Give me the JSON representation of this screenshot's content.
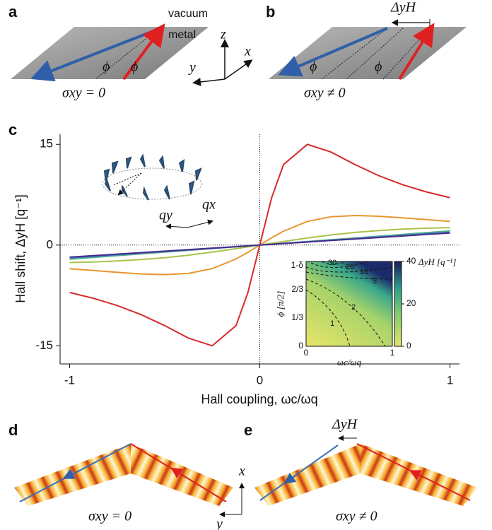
{
  "panel_a": {
    "label": "a",
    "vacuum": "vacuum",
    "metal": "metal",
    "axis_z": "z",
    "axis_x": "x",
    "axis_y": "y",
    "angle_1": "ϕ",
    "angle_2": "ϕ",
    "caption": "σxy = 0"
  },
  "panel_b": {
    "label": "b",
    "shift": "ΔyH",
    "angle_1": "ϕ",
    "angle_2": "ϕ",
    "caption": "σxy ≠ 0"
  },
  "panel_d": {
    "label": "d",
    "caption": "σxy = 0",
    "axis_x": "x",
    "axis_y": "y"
  },
  "panel_e": {
    "label": "e",
    "shift": "ΔyH",
    "caption": "σxy ≠ 0"
  },
  "chart_data": {
    "type": "line",
    "panel_label": "c",
    "x_label": "Hall coupling, ωc/ωq",
    "y_label": "Hall shift, ΔyH  [q⁻¹]",
    "x": [
      -1,
      -0.875,
      -0.75,
      -0.625,
      -0.5,
      -0.375,
      -0.25,
      -0.125,
      -0.0625,
      0,
      0.0625,
      0.125,
      0.25,
      0.375,
      0.5,
      0.625,
      0.75,
      0.875,
      1
    ],
    "series": [
      {
        "color": "#d62b2b",
        "values": [
          -7.06,
          -7.92,
          -9.0,
          -10.34,
          -12.0,
          -13.85,
          -15.0,
          -12.0,
          -7.06,
          0,
          7.06,
          12.0,
          15.0,
          13.85,
          12.0,
          10.34,
          9.0,
          7.92,
          7.06
        ]
      },
      {
        "color": "#e8962e",
        "values": [
          -3.52,
          -3.79,
          -4.06,
          -4.29,
          -4.4,
          -4.22,
          -3.52,
          -2.07,
          -1.08,
          0,
          1.08,
          2.07,
          3.52,
          4.22,
          4.4,
          4.29,
          4.06,
          3.79,
          3.52
        ]
      },
      {
        "color": "#a9c24a",
        "values": [
          -2.6,
          -2.52,
          -2.37,
          -2.16,
          -1.88,
          -1.5,
          -1.05,
          -0.54,
          -0.27,
          0,
          0.27,
          0.54,
          1.05,
          1.5,
          1.88,
          2.16,
          2.37,
          2.52,
          2.6
        ]
      },
      {
        "color": "#4fae8c",
        "values": [
          -2.1,
          -1.84,
          -1.58,
          -1.31,
          -1.05,
          -0.79,
          -0.53,
          -0.26,
          -0.13,
          0,
          0.13,
          0.26,
          0.53,
          0.79,
          1.05,
          1.31,
          1.58,
          1.84,
          2.1
        ]
      },
      {
        "color": "#3b74c4",
        "values": [
          -1.9,
          -1.66,
          -1.43,
          -1.19,
          -0.95,
          -0.71,
          -0.48,
          -0.24,
          -0.12,
          0,
          0.12,
          0.24,
          0.48,
          0.71,
          0.95,
          1.19,
          1.43,
          1.66,
          1.9
        ]
      },
      {
        "color": "#4a2a8c",
        "values": [
          -1.8,
          -1.58,
          -1.35,
          -1.13,
          -0.9,
          -0.68,
          -0.45,
          -0.23,
          -0.11,
          0,
          0.11,
          0.23,
          0.45,
          0.68,
          0.9,
          1.13,
          1.35,
          1.58,
          1.8
        ]
      }
    ],
    "xlim": [
      -1.05,
      1.05
    ],
    "xticks": [
      -1,
      0,
      1
    ],
    "ylim": [
      -17.7,
      16.5
    ],
    "yticks": [
      -15,
      0,
      15
    ],
    "ring_inset": {
      "q_y": "qy",
      "q_x": "qx"
    },
    "map_inset": {
      "yticks": [
        "0",
        "1/3",
        "2/3",
        "1-δ"
      ],
      "xticks": [
        "0",
        "1"
      ],
      "x_label": "ωc/ωq",
      "y_label": "ϕ [π/2]",
      "colorbar_label": "ΔyH [q⁻¹]",
      "colorbar_lim": [
        0,
        40
      ],
      "colorbar_ticks": [
        0,
        20,
        40
      ],
      "contour_labels": [
        "30",
        "20",
        "10",
        "5",
        "2",
        "1"
      ]
    }
  }
}
